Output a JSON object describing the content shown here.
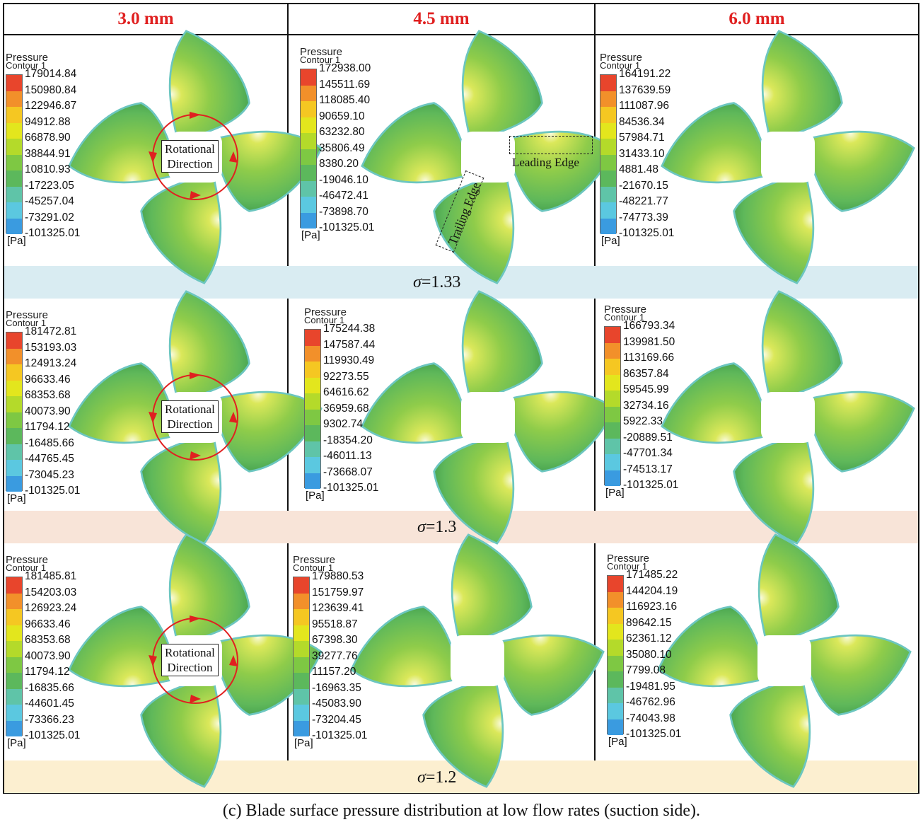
{
  "columns": [
    "3.0 mm",
    "4.5 mm",
    "6.0 mm"
  ],
  "legend_title": "Pressure",
  "legend_subtitle": "Contour 1",
  "legend_unit": "[Pa]",
  "legend_colors": [
    "#e8452c",
    "#f2902a",
    "#f5c722",
    "#e3e61d",
    "#b4da2a",
    "#7ec843",
    "#5cb85c",
    "#5fc4a8",
    "#5bc8e0",
    "#3a9be0",
    "#3d55b8"
  ],
  "rows": [
    {
      "sigma": "=1.33",
      "sigma_symbol": "σ",
      "band_color": "#d9ecf2",
      "cells": [
        {
          "labels": [
            "179014.84",
            "150980.84",
            "122946.87",
            "94912.88",
            "66878.90",
            "38844.91",
            "10810.93",
            "-17223.05",
            "-45257.04",
            "-73291.02",
            "-101325.01"
          ]
        },
        {
          "labels": [
            "172938.00",
            "145511.69",
            "118085.40",
            "90659.10",
            "63232.80",
            "35806.49",
            "8380.20",
            "-19046.10",
            "-46472.41",
            "-73898.70",
            "-101325.01"
          ]
        },
        {
          "labels": [
            "164191.22",
            "137639.59",
            "111087.96",
            "84536.34",
            "57984.71",
            "31433.10",
            "4881.48",
            "-21670.15",
            "-48221.77",
            "-74773.39",
            "-101325.01"
          ]
        }
      ]
    },
    {
      "sigma": "=1.3",
      "sigma_symbol": "σ",
      "band_color": "#f8e4d8",
      "cells": [
        {
          "labels": [
            "181472.81",
            "153193.03",
            "124913.24",
            "96633.46",
            "68353.68",
            "40073.90",
            "11794.12",
            "-16485.66",
            "-44765.45",
            "-73045.23",
            "-101325.01"
          ]
        },
        {
          "labels": [
            "175244.38",
            "147587.44",
            "119930.49",
            "92273.55",
            "64616.62",
            "36959.68",
            "9302.74",
            "-18354.20",
            "-46011.13",
            "-73668.07",
            "-101325.01"
          ]
        },
        {
          "labels": [
            "166793.34",
            "139981.50",
            "113169.66",
            "86357.84",
            "59545.99",
            "32734.16",
            "5922.33",
            "-20889.51",
            "-47701.34",
            "-74513.17",
            "-101325.01"
          ]
        }
      ]
    },
    {
      "sigma": "=1.2",
      "sigma_symbol": "σ",
      "band_color": "#fcefd0",
      "cells": [
        {
          "labels": [
            "181485.81",
            "154203.03",
            "126923.24",
            "96633.46",
            "68353.68",
            "40073.90",
            "11794.12",
            "-16835.66",
            "-44601.45",
            "-73366.23",
            "-101325.01"
          ]
        },
        {
          "labels": [
            "179880.53",
            "151759.97",
            "123639.41",
            "95518.87",
            "67398.30",
            "39277.76",
            "11157.20",
            "-16963.35",
            "-45083.90",
            "-73204.45",
            "-101325.01"
          ]
        },
        {
          "labels": [
            "171485.22",
            "144204.19",
            "116923.16",
            "89642.15",
            "62361.12",
            "35080.10",
            "7799.08",
            "-19481.95",
            "-46762.96",
            "-74043.98",
            "-101325.01"
          ]
        }
      ]
    }
  ],
  "rotation_label_line1": "Rotational",
  "rotation_label_line2": "Direction",
  "leading_edge_label": "Leading Edge",
  "trailing_edge_label": "Trailing Edge",
  "caption": "(c) Blade surface pressure distribution at low flow rates (suction side)."
}
